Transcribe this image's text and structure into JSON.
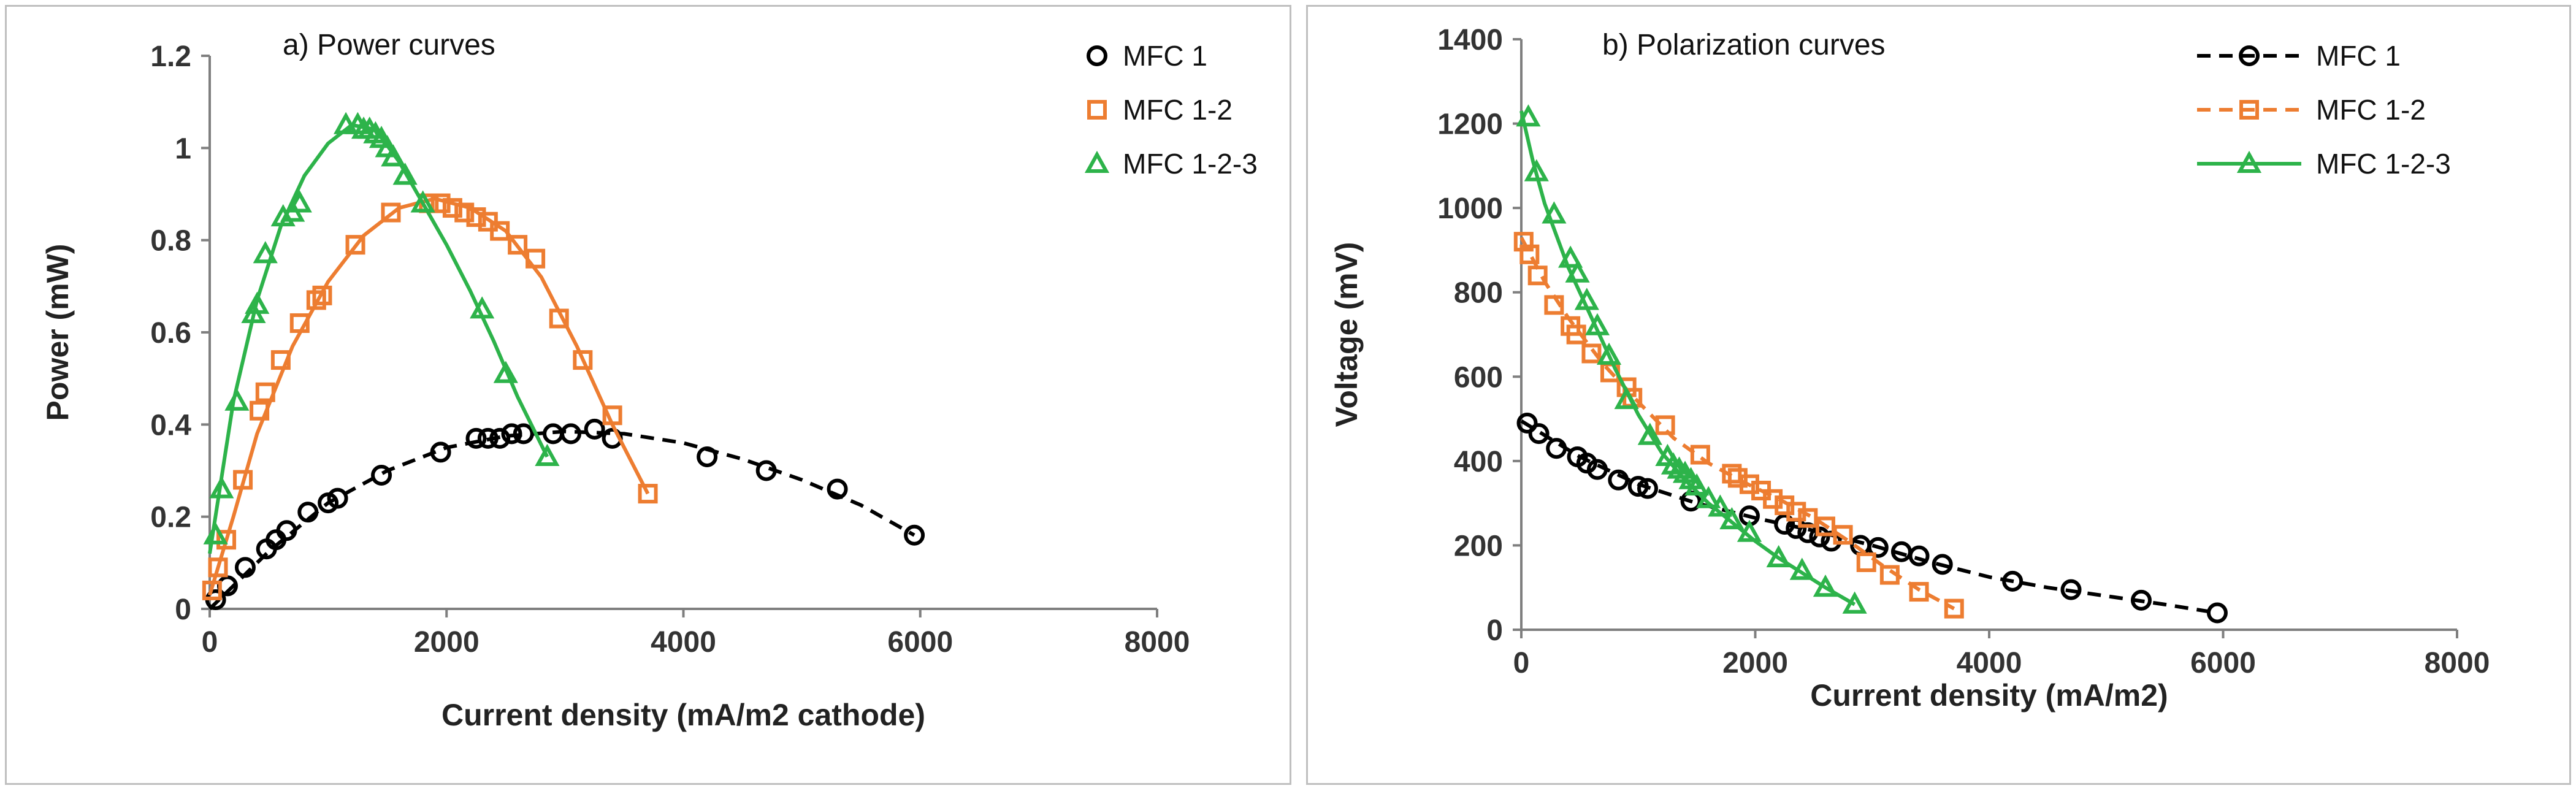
{
  "chart_data": [
    {
      "type": "scatter",
      "title": "a) Power curves",
      "xlabel": "Current density (mA/m2 cathode)",
      "ylabel": "Power (mW)",
      "xlim": [
        0,
        8000
      ],
      "ylim": [
        0,
        1.2
      ],
      "xticks": [
        "0",
        "2000",
        "4000",
        "6000",
        "8000"
      ],
      "yticks": [
        "0",
        "0.2",
        "0.4",
        "0.6",
        "0.8",
        "1",
        "1.2"
      ],
      "grid": false,
      "legend_position": "top-right",
      "series": [
        {
          "name": "MFC 1",
          "color": "#000000",
          "marker": "circle",
          "fit": "dashed",
          "x": [
            50,
            150,
            300,
            480,
            560,
            650,
            830,
            1000,
            1080,
            1450,
            1950,
            2250,
            2350,
            2450,
            2550,
            2650,
            2900,
            3050,
            3250,
            3400,
            4200,
            4700,
            5300,
            5950
          ],
          "y": [
            0.02,
            0.05,
            0.09,
            0.13,
            0.15,
            0.17,
            0.21,
            0.23,
            0.24,
            0.29,
            0.34,
            0.37,
            0.37,
            0.37,
            0.38,
            0.38,
            0.38,
            0.38,
            0.39,
            0.37,
            0.33,
            0.3,
            0.26,
            0.16
          ],
          "fit_x": [
            0,
            500,
            1000,
            1500,
            2000,
            2500,
            3000,
            3500,
            4000,
            4500,
            5000,
            5500,
            5950
          ],
          "fit_y": [
            0.0,
            0.125,
            0.23,
            0.3,
            0.35,
            0.375,
            0.385,
            0.38,
            0.36,
            0.325,
            0.28,
            0.225,
            0.16
          ]
        },
        {
          "name": "MFC 1-2",
          "color": "#ed7d31",
          "marker": "square",
          "fit": "solid",
          "x": [
            20,
            70,
            140,
            280,
            420,
            470,
            600,
            760,
            900,
            950,
            1230,
            1530,
            1850,
            1950,
            2050,
            2150,
            2250,
            2350,
            2450,
            2600,
            2750,
            2950,
            3150,
            3400,
            3700
          ],
          "y": [
            0.04,
            0.09,
            0.15,
            0.28,
            0.43,
            0.47,
            0.54,
            0.62,
            0.67,
            0.68,
            0.79,
            0.86,
            0.88,
            0.88,
            0.87,
            0.86,
            0.85,
            0.84,
            0.82,
            0.79,
            0.76,
            0.63,
            0.54,
            0.42,
            0.25
          ],
          "fit_x": [
            0,
            200,
            400,
            700,
            1000,
            1300,
            1600,
            1900,
            2200,
            2500,
            2800,
            3100,
            3400,
            3700
          ],
          "fit_y": [
            0.03,
            0.2,
            0.38,
            0.57,
            0.71,
            0.81,
            0.87,
            0.89,
            0.87,
            0.82,
            0.72,
            0.57,
            0.4,
            0.25
          ]
        },
        {
          "name": "MFC 1-2-3",
          "color": "#2db34a",
          "marker": "triangle",
          "fit": "solid",
          "x": [
            50,
            100,
            230,
            370,
            400,
            470,
            620,
            700,
            760,
            1150,
            1250,
            1300,
            1350,
            1400,
            1450,
            1500,
            1550,
            1650,
            1800,
            2300,
            2500,
            2850
          ],
          "y": [
            0.16,
            0.26,
            0.45,
            0.64,
            0.66,
            0.77,
            0.85,
            0.86,
            0.88,
            1.05,
            1.05,
            1.04,
            1.04,
            1.03,
            1.02,
            1.0,
            0.98,
            0.94,
            0.88,
            0.65,
            0.51,
            0.33
          ],
          "fit_x": [
            0,
            200,
            400,
            600,
            800,
            1000,
            1200,
            1400,
            1600,
            1800,
            2000,
            2200,
            2400,
            2600,
            2850
          ],
          "fit_y": [
            0.12,
            0.45,
            0.67,
            0.83,
            0.94,
            1.01,
            1.05,
            1.04,
            0.97,
            0.88,
            0.79,
            0.69,
            0.58,
            0.46,
            0.33
          ]
        }
      ]
    },
    {
      "type": "scatter",
      "title": "b) Polarization curves",
      "xlabel": "Current density (mA/m2)",
      "ylabel": "Voltage (mV)",
      "xlim": [
        0,
        8000
      ],
      "ylim": [
        0,
        1400
      ],
      "xticks": [
        "0",
        "2000",
        "4000",
        "6000",
        "8000"
      ],
      "yticks": [
        "0",
        "200",
        "400",
        "600",
        "800",
        "1000",
        "1200",
        "1400"
      ],
      "grid": false,
      "legend_position": "top-right",
      "series": [
        {
          "name": "MFC 1",
          "color": "#000000",
          "marker": "circle",
          "fit": "dashed",
          "x": [
            50,
            150,
            300,
            480,
            560,
            650,
            830,
            1000,
            1080,
            1450,
            1950,
            2250,
            2350,
            2450,
            2550,
            2650,
            2900,
            3050,
            3250,
            3400,
            3600,
            4200,
            4700,
            5300,
            5950
          ],
          "y": [
            490,
            465,
            430,
            410,
            395,
            380,
            355,
            340,
            335,
            305,
            270,
            250,
            240,
            230,
            220,
            210,
            200,
            195,
            185,
            175,
            155,
            115,
            95,
            70,
            40
          ],
          "fit_x": [
            0,
            500,
            1000,
            1500,
            2000,
            2500,
            3000,
            3500,
            4000,
            4500,
            5000,
            5500,
            5950
          ],
          "fit_y": [
            495,
            410,
            345,
            300,
            265,
            235,
            200,
            160,
            125,
            100,
            80,
            60,
            40
          ]
        },
        {
          "name": "MFC 1-2",
          "color": "#ed7d31",
          "marker": "square",
          "fit": "dashed",
          "x": [
            20,
            70,
            140,
            280,
            420,
            470,
            600,
            760,
            900,
            950,
            1230,
            1530,
            1800,
            1850,
            1950,
            2050,
            2150,
            2250,
            2350,
            2450,
            2600,
            2750,
            2950,
            3150,
            3400,
            3700
          ],
          "y": [
            920,
            890,
            840,
            770,
            720,
            700,
            655,
            610,
            575,
            550,
            485,
            415,
            370,
            360,
            345,
            330,
            310,
            295,
            280,
            265,
            245,
            225,
            160,
            130,
            90,
            50
          ],
          "fit_x": [
            0,
            200,
            400,
            700,
            1000,
            1300,
            1600,
            1900,
            2200,
            2500,
            2800,
            3100,
            3400,
            3700
          ],
          "fit_y": [
            930,
            825,
            740,
            630,
            540,
            455,
            395,
            350,
            310,
            265,
            210,
            150,
            95,
            50
          ]
        },
        {
          "name": "MFC 1-2-3",
          "color": "#2db34a",
          "marker": "triangle",
          "fit": "solid",
          "x": [
            60,
            130,
            280,
            420,
            480,
            560,
            650,
            750,
            900,
            1100,
            1250,
            1300,
            1350,
            1400,
            1450,
            1500,
            1600,
            1700,
            1800,
            1950,
            2200,
            2400,
            2600,
            2850
          ],
          "y": [
            1215,
            1085,
            985,
            880,
            845,
            780,
            720,
            650,
            545,
            460,
            410,
            390,
            380,
            370,
            355,
            340,
            310,
            290,
            260,
            230,
            170,
            140,
            100,
            60
          ],
          "fit_x": [
            0,
            100,
            200,
            400,
            600,
            800,
            1000,
            1200,
            1400,
            1600,
            1800,
            2000,
            2200,
            2400,
            2600,
            2850
          ],
          "fit_y": [
            1230,
            1110,
            1010,
            860,
            740,
            620,
            510,
            420,
            355,
            300,
            255,
            210,
            170,
            135,
            100,
            60
          ]
        }
      ]
    }
  ]
}
